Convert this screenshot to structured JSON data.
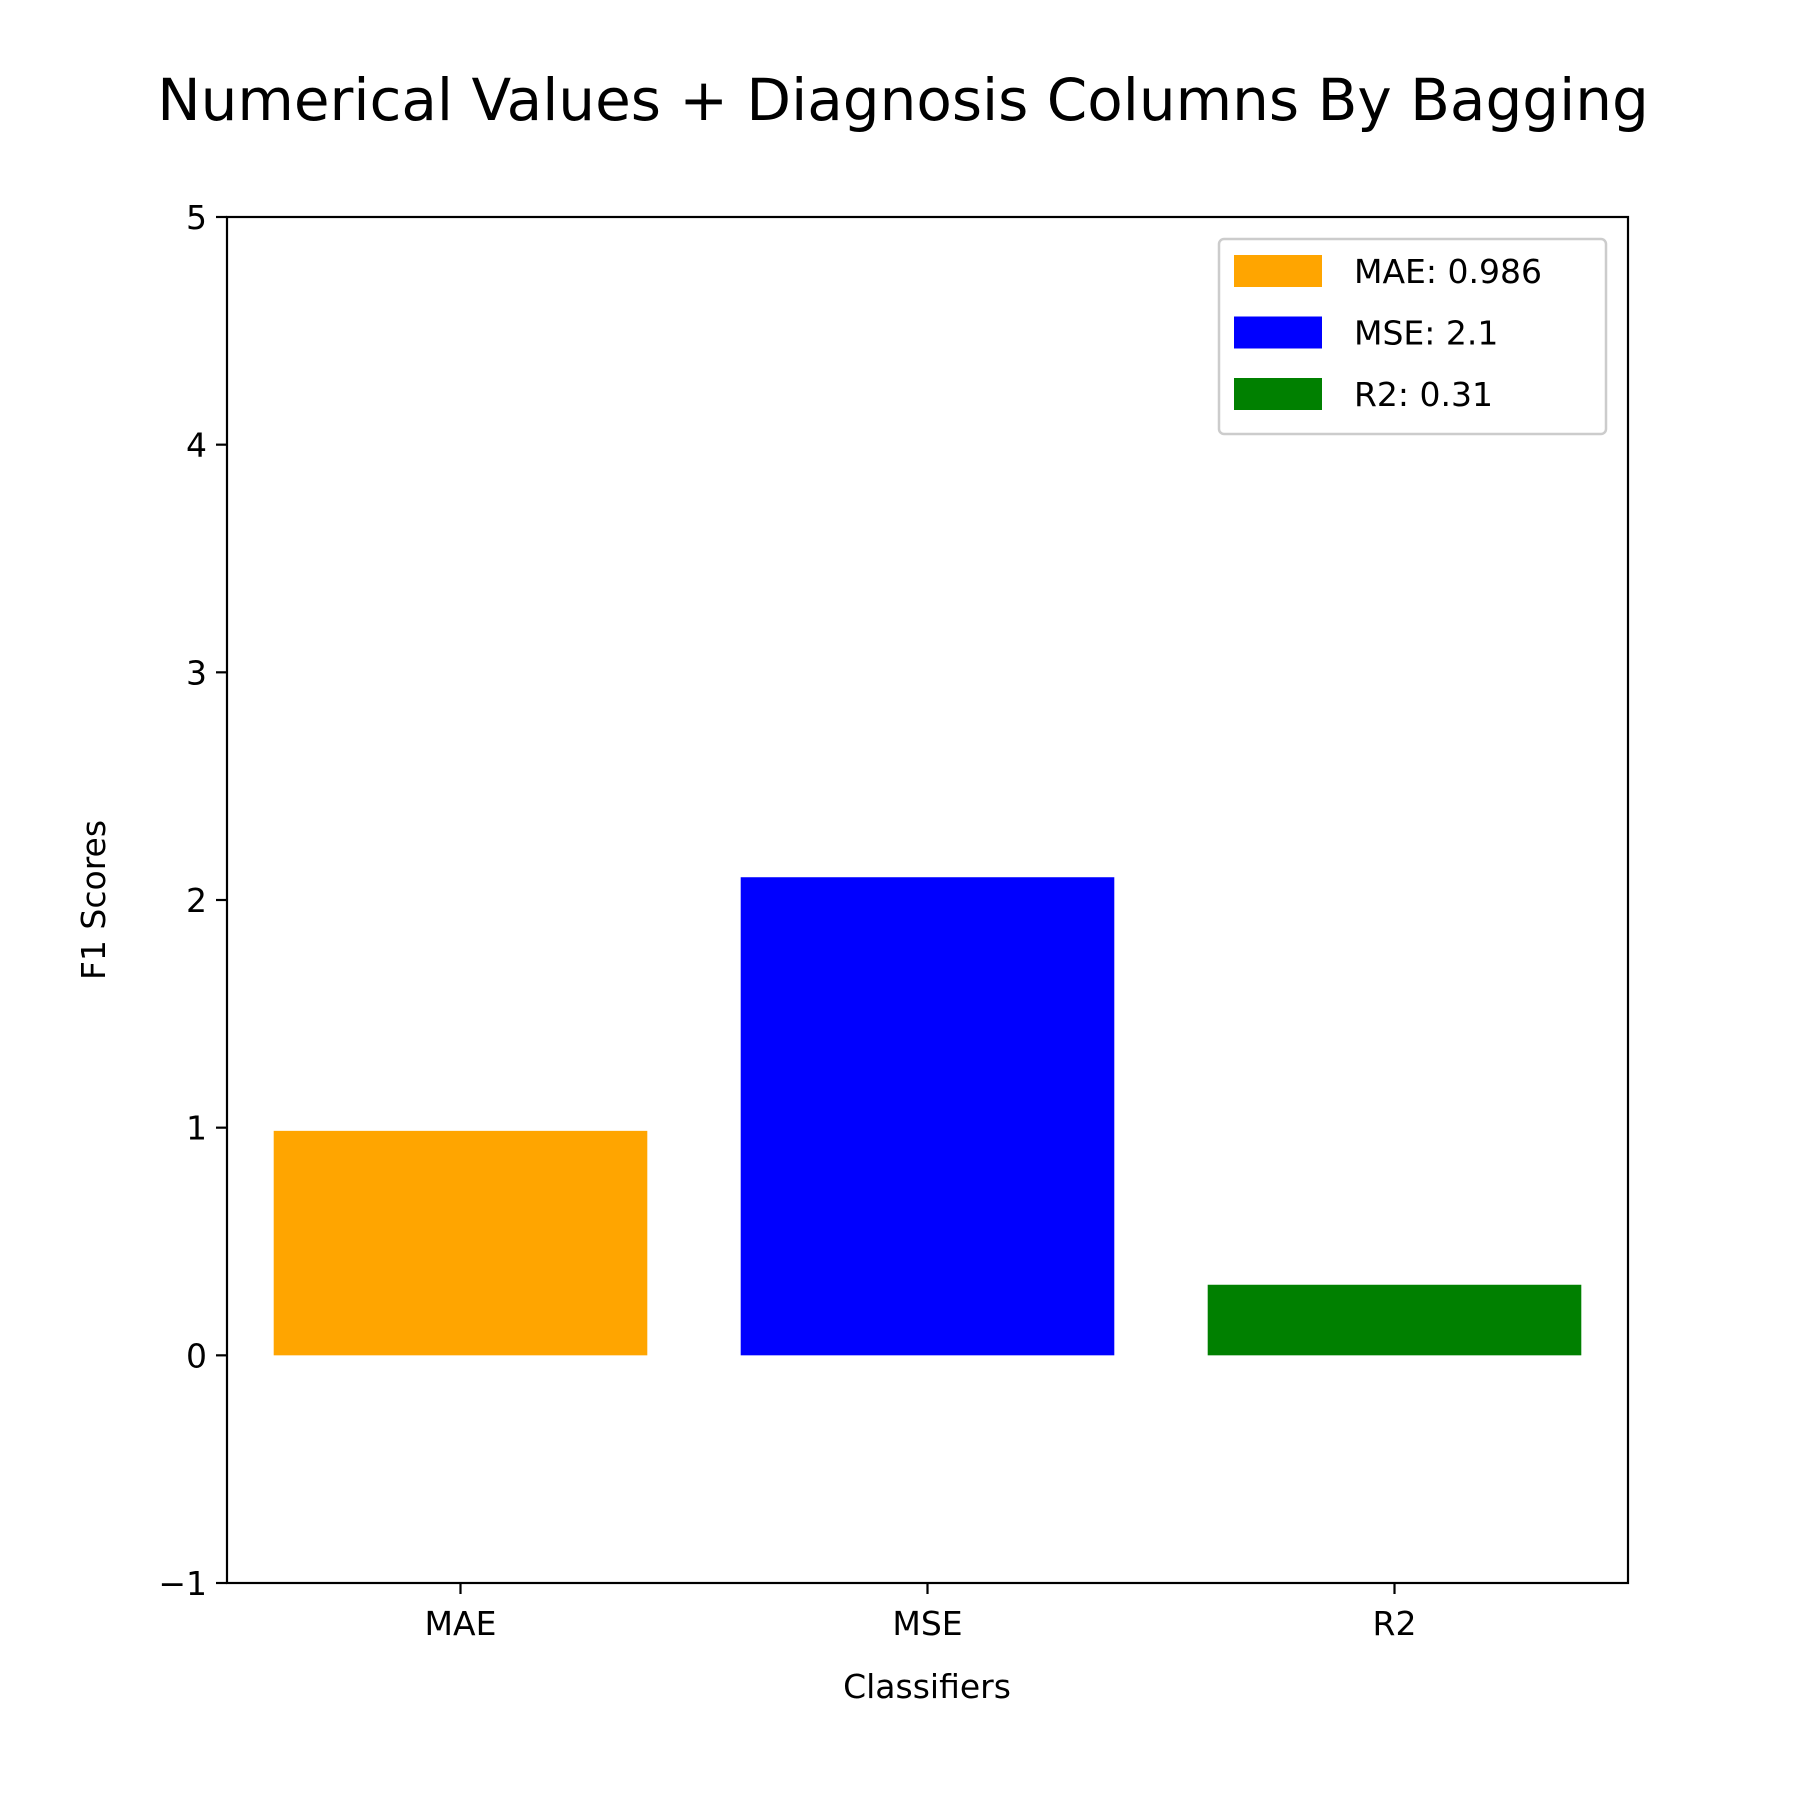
{
  "chart_data": {
    "type": "bar",
    "title": "Numerical Values + Diagnosis Columns By Bagging",
    "xlabel": "Classifiers",
    "ylabel": "F1 Scores",
    "categories": [
      "MAE",
      "MSE",
      "R2"
    ],
    "values": [
      0.986,
      2.1,
      0.31
    ],
    "colors": [
      "#ffa500",
      "#0000ff",
      "#008000"
    ],
    "ylim": [
      -1,
      5
    ],
    "yticks": [
      -1,
      0,
      1,
      2,
      3,
      4,
      5
    ],
    "ytick_labels": [
      "−1",
      "0",
      "1",
      "2",
      "3",
      "4",
      "5"
    ],
    "grid": false,
    "legend": {
      "placement": "top-right",
      "entries": [
        "MAE: 0.986",
        "MSE: 2.1",
        "R2: 0.31"
      ]
    }
  }
}
